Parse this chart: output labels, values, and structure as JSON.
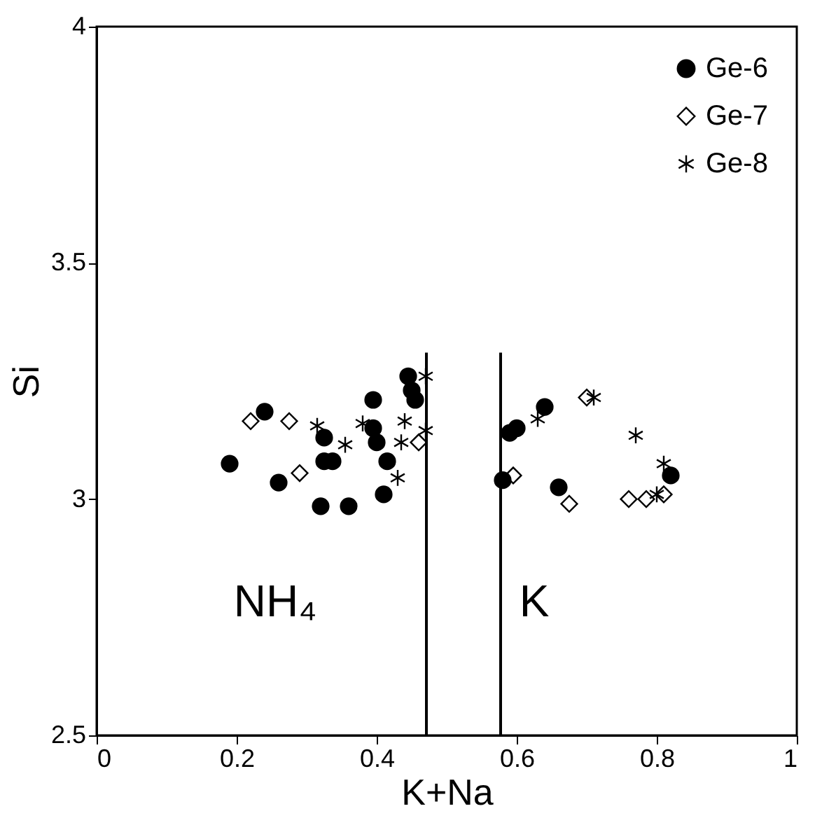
{
  "chart_data": {
    "type": "scatter",
    "xlabel": "K+Na",
    "ylabel": "Si",
    "xlim": [
      0,
      1
    ],
    "ylim": [
      2.5,
      4
    ],
    "xticks": [
      0,
      0.2,
      0.4,
      0.6,
      0.8,
      1
    ],
    "yticks": [
      2.5,
      3,
      3.5,
      4
    ],
    "grid": false,
    "legend": "top right",
    "series": [
      {
        "name": "Ge-6",
        "color": "#000000",
        "marker": "circle",
        "x": [
          0.19,
          0.24,
          0.26,
          0.325,
          0.337,
          0.32,
          0.36,
          0.325,
          0.395,
          0.395,
          0.4,
          0.415,
          0.41,
          0.445,
          0.45,
          0.455,
          0.59,
          0.6,
          0.64,
          0.58,
          0.66,
          0.82
        ],
        "values": [
          3.075,
          3.185,
          3.035,
          3.08,
          3.08,
          2.985,
          2.985,
          3.13,
          3.21,
          3.15,
          3.12,
          3.08,
          3.01,
          3.26,
          3.23,
          3.21,
          3.14,
          3.15,
          3.195,
          3.04,
          3.025,
          3.05
        ]
      },
      {
        "name": "Ge-7",
        "color": "#000000",
        "marker": "diamond",
        "x": [
          0.22,
          0.275,
          0.29,
          0.46,
          0.595,
          0.675,
          0.7,
          0.76,
          0.785,
          0.81
        ],
        "values": [
          3.165,
          3.165,
          3.055,
          3.12,
          3.05,
          2.99,
          3.215,
          3.0,
          3.0,
          3.01
        ]
      },
      {
        "name": "Ge-8",
        "color": "#000000",
        "marker": "cross",
        "x": [
          0.47,
          0.315,
          0.355,
          0.38,
          0.44,
          0.435,
          0.47,
          0.43,
          0.63,
          0.71,
          0.77,
          0.81,
          0.8
        ],
        "values": [
          3.26,
          3.155,
          3.115,
          3.16,
          3.165,
          3.12,
          3.145,
          3.045,
          3.17,
          3.215,
          3.135,
          3.075,
          3.01
        ]
      },
      {
        "type": "line",
        "color": "#000000",
        "marker": "none",
        "line_style": "solid",
        "x": [
          0.471,
          0.471
        ],
        "values": [
          2.5,
          3.31
        ]
      },
      {
        "type": "line",
        "color": "#000000",
        "marker": "none",
        "line_style": "solid",
        "x": [
          0.577,
          0.577
        ],
        "values": [
          2.5,
          3.31
        ]
      }
    ],
    "annotations": [
      "NH₄",
      "K"
    ]
  }
}
